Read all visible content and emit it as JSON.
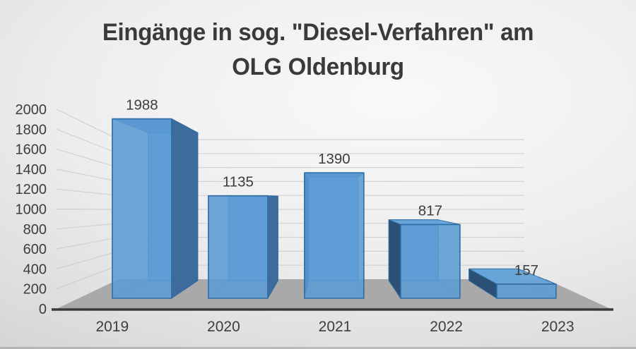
{
  "title": {
    "line1": "Eingänge in sog. \"Diesel-Verfahren\" am",
    "line2": "OLG Oldenburg"
  },
  "chart_data": {
    "type": "bar",
    "style": "3d-column",
    "title": "Eingänge in sog. \"Diesel-Verfahren\" am OLG Oldenburg",
    "categories": [
      "2019",
      "2020",
      "2021",
      "2022",
      "2023"
    ],
    "values": [
      1988,
      1135,
      1390,
      817,
      157
    ],
    "data_labels": [
      "1988",
      "1135",
      "1390",
      "817",
      "157"
    ],
    "xlabel": "",
    "ylabel": "",
    "ylim": [
      0,
      2000
    ],
    "y_ticks": [
      0,
      200,
      400,
      600,
      800,
      1000,
      1200,
      1400,
      1600,
      1800,
      2000
    ],
    "grid": true,
    "legend": false
  },
  "colors": {
    "text": "#3d3d3d",
    "axis_line": "#3a3a3a",
    "gridline": "#c8c8c8",
    "floor": "#a9a9a9",
    "bar_front": "#5b9bd5",
    "bar_back": "#6ba3d8",
    "bar_top_above": "#4b86bf",
    "bar_top_below": "#66a3d8",
    "bar_side_right": "#3d6b9b",
    "bar_side_left": "#2a5076",
    "bar_stroke": "#2e6da4",
    "bar_inner_edge": "#3e75ad"
  }
}
